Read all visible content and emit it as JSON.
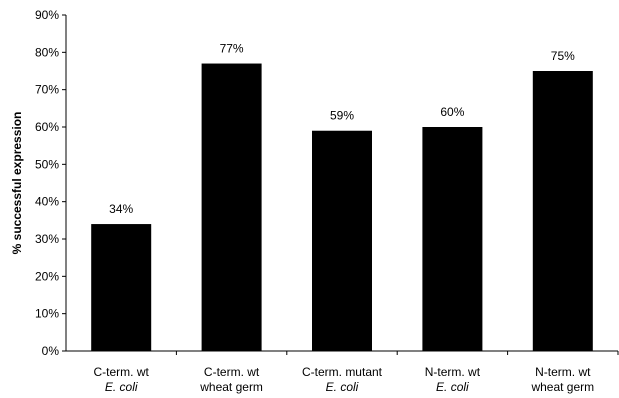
{
  "chart_data": {
    "type": "bar",
    "title": "",
    "xlabel": "",
    "ylabel": "% successful expression",
    "ylim": [
      0,
      90
    ],
    "yticks": [
      "0%",
      "10%",
      "20%",
      "30%",
      "40%",
      "50%",
      "60%",
      "70%",
      "80%",
      "90%"
    ],
    "categories": [
      {
        "line1": "C-term. wt",
        "line2": "E. coli",
        "line2_italic": true
      },
      {
        "line1": "C-term. wt",
        "line2": "wheat germ",
        "line2_italic": false
      },
      {
        "line1": "C-term. mutant",
        "line2": "E. coli",
        "line2_italic": true
      },
      {
        "line1": "N-term. wt",
        "line2": "E. coli",
        "line2_italic": true
      },
      {
        "line1": "N-term. wt",
        "line2": "wheat germ",
        "line2_italic": false
      }
    ],
    "values": [
      34,
      77,
      59,
      60,
      75
    ],
    "data_labels": [
      "34%",
      "77%",
      "59%",
      "60%",
      "75%"
    ],
    "bar_color": "#000000",
    "grid": false,
    "legend": "none"
  }
}
